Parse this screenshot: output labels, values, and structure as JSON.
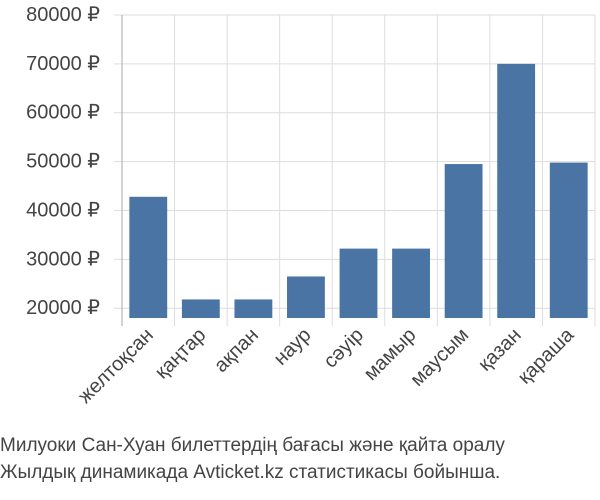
{
  "chart_data": {
    "type": "bar",
    "categories": [
      "желтоқсан",
      "қаңтар",
      "ақпан",
      "наур",
      "сәуір",
      "мамыр",
      "маусым",
      "қазан",
      "қараша"
    ],
    "values": [
      42800,
      21800,
      21800,
      26500,
      32200,
      32200,
      49500,
      70000,
      49800
    ],
    "yticks": [
      20000,
      30000,
      40000,
      50000,
      60000,
      70000,
      80000
    ],
    "ytick_labels": [
      "20000 ₽",
      "30000 ₽",
      "40000 ₽",
      "50000 ₽",
      "60000 ₽",
      "70000 ₽",
      "80000 ₽"
    ],
    "ylim": [
      18000,
      80000
    ],
    "grid": true,
    "bar_color": "#4a74a4",
    "grid_color": "#dddddd",
    "axis_color": "#aaaaaa",
    "tick_label_color": "#444444"
  },
  "caption": {
    "line1": "Милуоки Сан-Хуан билеттердің бағасы және қайта оралу",
    "line2": "Жылдық динамикада Avticket.kz статистикасы бойынша."
  }
}
